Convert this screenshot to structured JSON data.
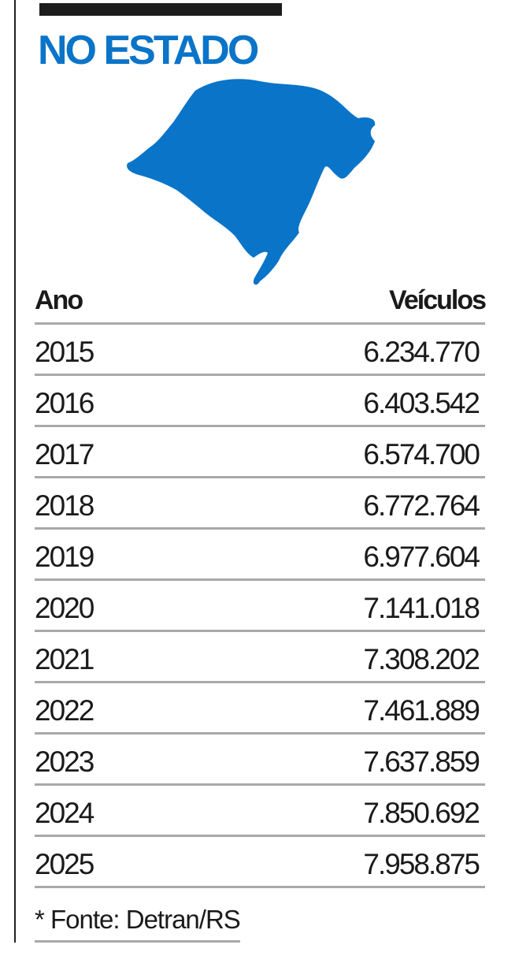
{
  "title": "NO ESTADO",
  "accent_color": "#0a74c8",
  "map_icon": "rio-grande-do-sul-map-icon",
  "table": {
    "header": {
      "year": "Ano",
      "vehicles": "Veículos"
    },
    "rows": [
      {
        "year": "2015",
        "vehicles": "6.234.770"
      },
      {
        "year": "2016",
        "vehicles": "6.403.542"
      },
      {
        "year": "2017",
        "vehicles": "6.574.700"
      },
      {
        "year": "2018",
        "vehicles": "6.772.764"
      },
      {
        "year": "2019",
        "vehicles": "6.977.604"
      },
      {
        "year": "2020",
        "vehicles": "7.141.018"
      },
      {
        "year": "2021",
        "vehicles": "7.308.202"
      },
      {
        "year": "2022",
        "vehicles": "7.461.889"
      },
      {
        "year": "2023",
        "vehicles": "7.637.859"
      },
      {
        "year": "2024",
        "vehicles": "7.850.692"
      },
      {
        "year": "2025",
        "vehicles": "7.958.875"
      }
    ]
  },
  "source": "* Fonte: Detran/RS"
}
